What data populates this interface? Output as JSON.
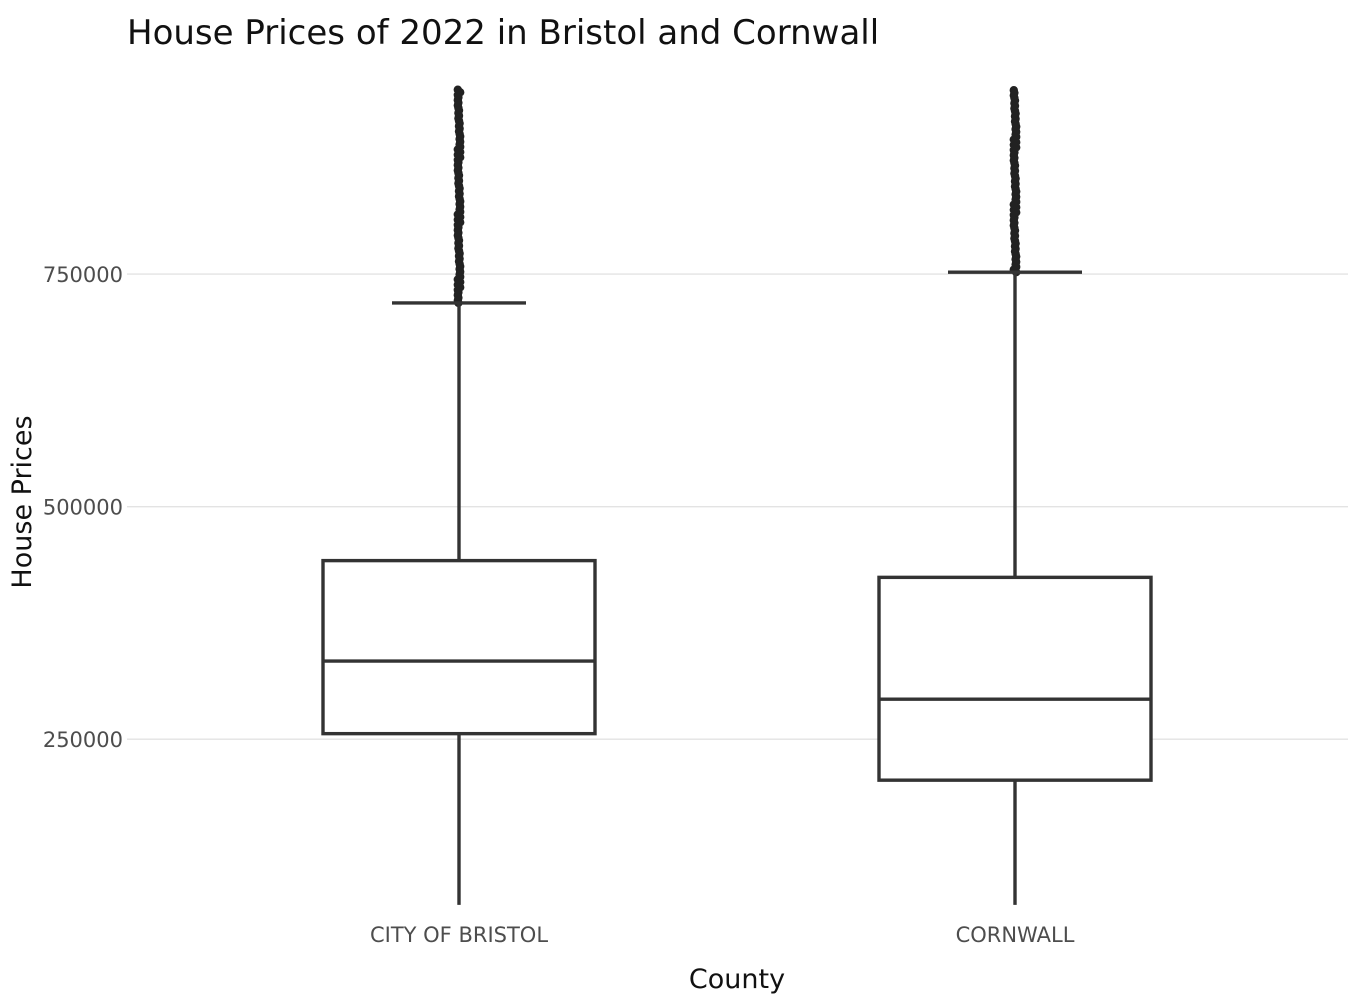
{
  "chart_data": {
    "type": "box",
    "title": "House Prices of 2022 in Bristol and Cornwall",
    "xlabel": "County",
    "ylabel": "House Prices",
    "ylim": [
      60000,
      950000
    ],
    "yticks": [
      250000,
      500000,
      750000
    ],
    "grid": true,
    "categories": [
      "CITY OF BRISTOL",
      "CORNWALL"
    ],
    "boxes": [
      {
        "name": "CITY OF BRISTOL",
        "whisker_low": 72000,
        "q1": 256000,
        "median": 334000,
        "q3": 442000,
        "whisker_high": 719000,
        "outlier_range": [
          719000,
          950000
        ]
      },
      {
        "name": "CORNWALL",
        "whisker_low": 72000,
        "q1": 206000,
        "median": 293000,
        "q3": 424000,
        "whisker_high": 752000,
        "outlier_range": [
          752000,
          950000
        ]
      }
    ]
  }
}
